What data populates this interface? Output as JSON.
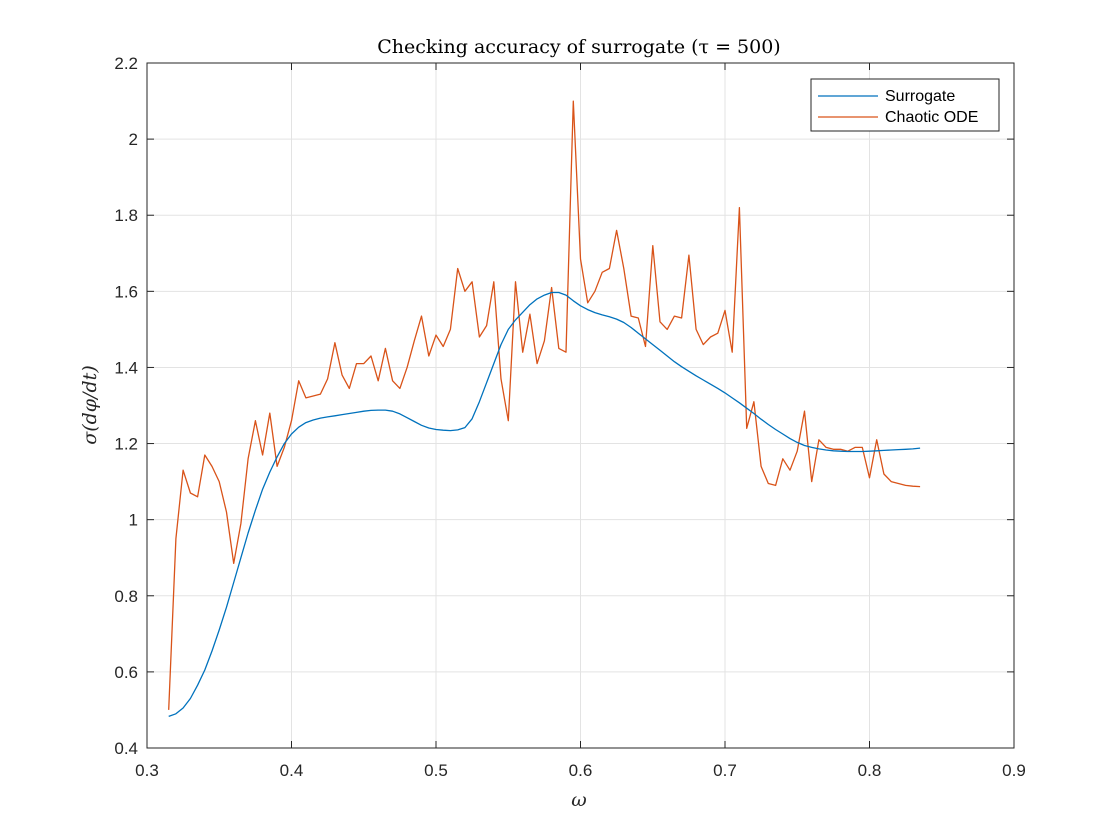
{
  "chart_data": {
    "type": "line",
    "title": "Checking accuracy of surrogate (τ = 500)",
    "xlabel": "ω",
    "ylabel": "σ(dφ/dt)",
    "xlim": [
      0.3,
      0.9
    ],
    "ylim": [
      0.4,
      2.2
    ],
    "xticks": [
      "0.3",
      "0.4",
      "0.5",
      "0.6",
      "0.7",
      "0.8",
      "0.9"
    ],
    "yticks": [
      "0.4",
      "0.6",
      "0.8",
      "1",
      "1.2",
      "1.4",
      "1.6",
      "1.8",
      "2",
      "2.2"
    ],
    "grid": true,
    "legend_position": "top-right",
    "series": [
      {
        "name": "Surrogate",
        "color": "#0072BD",
        "x": [
          0.315,
          0.32,
          0.325,
          0.33,
          0.335,
          0.34,
          0.345,
          0.35,
          0.355,
          0.36,
          0.365,
          0.37,
          0.375,
          0.38,
          0.385,
          0.39,
          0.395,
          0.4,
          0.405,
          0.41,
          0.415,
          0.42,
          0.425,
          0.43,
          0.435,
          0.44,
          0.445,
          0.45,
          0.455,
          0.46,
          0.465,
          0.47,
          0.475,
          0.48,
          0.485,
          0.49,
          0.495,
          0.5,
          0.505,
          0.51,
          0.515,
          0.52,
          0.525,
          0.53,
          0.535,
          0.54,
          0.545,
          0.55,
          0.555,
          0.56,
          0.565,
          0.57,
          0.575,
          0.58,
          0.585,
          0.59,
          0.595,
          0.6,
          0.605,
          0.61,
          0.615,
          0.62,
          0.625,
          0.63,
          0.635,
          0.64,
          0.645,
          0.65,
          0.655,
          0.66,
          0.665,
          0.67,
          0.675,
          0.68,
          0.685,
          0.69,
          0.695,
          0.7,
          0.705,
          0.71,
          0.715,
          0.72,
          0.725,
          0.73,
          0.735,
          0.74,
          0.745,
          0.75,
          0.755,
          0.76,
          0.765,
          0.77,
          0.775,
          0.78,
          0.785,
          0.79,
          0.795,
          0.8,
          0.805,
          0.81,
          0.815,
          0.82,
          0.825,
          0.83,
          0.835
        ],
        "y": [
          0.483,
          0.49,
          0.505,
          0.53,
          0.565,
          0.605,
          0.655,
          0.71,
          0.77,
          0.835,
          0.9,
          0.965,
          1.025,
          1.08,
          1.125,
          1.165,
          1.2,
          1.225,
          1.243,
          1.255,
          1.262,
          1.267,
          1.27,
          1.273,
          1.276,
          1.279,
          1.282,
          1.285,
          1.287,
          1.288,
          1.288,
          1.285,
          1.278,
          1.268,
          1.258,
          1.248,
          1.241,
          1.237,
          1.235,
          1.234,
          1.236,
          1.242,
          1.265,
          1.31,
          1.36,
          1.41,
          1.46,
          1.5,
          1.525,
          1.545,
          1.565,
          1.58,
          1.59,
          1.597,
          1.597,
          1.59,
          1.575,
          1.562,
          1.552,
          1.544,
          1.538,
          1.533,
          1.527,
          1.518,
          1.505,
          1.49,
          1.475,
          1.46,
          1.445,
          1.43,
          1.415,
          1.402,
          1.39,
          1.378,
          1.367,
          1.356,
          1.345,
          1.333,
          1.32,
          1.307,
          1.293,
          1.279,
          1.264,
          1.25,
          1.237,
          1.225,
          1.213,
          1.203,
          1.195,
          1.19,
          1.186,
          1.183,
          1.181,
          1.18,
          1.179,
          1.179,
          1.179,
          1.18,
          1.181,
          1.182,
          1.183,
          1.184,
          1.185,
          1.186,
          1.188
        ]
      },
      {
        "name": "Chaotic ODE",
        "color": "#D95319",
        "x": [
          0.315,
          0.32,
          0.325,
          0.33,
          0.335,
          0.34,
          0.345,
          0.35,
          0.355,
          0.36,
          0.365,
          0.37,
          0.375,
          0.38,
          0.385,
          0.39,
          0.395,
          0.4,
          0.405,
          0.41,
          0.415,
          0.42,
          0.425,
          0.43,
          0.435,
          0.44,
          0.445,
          0.45,
          0.455,
          0.46,
          0.465,
          0.47,
          0.475,
          0.48,
          0.485,
          0.49,
          0.495,
          0.5,
          0.505,
          0.51,
          0.515,
          0.52,
          0.525,
          0.53,
          0.535,
          0.54,
          0.545,
          0.55,
          0.555,
          0.56,
          0.565,
          0.57,
          0.575,
          0.58,
          0.585,
          0.59,
          0.595,
          0.6,
          0.605,
          0.61,
          0.615,
          0.62,
          0.625,
          0.63,
          0.635,
          0.64,
          0.645,
          0.65,
          0.655,
          0.66,
          0.665,
          0.67,
          0.675,
          0.68,
          0.685,
          0.69,
          0.695,
          0.7,
          0.705,
          0.71,
          0.715,
          0.72,
          0.725,
          0.73,
          0.735,
          0.74,
          0.745,
          0.75,
          0.755,
          0.76,
          0.765,
          0.77,
          0.775,
          0.78,
          0.785,
          0.79,
          0.795,
          0.8,
          0.805,
          0.81,
          0.815,
          0.82,
          0.825,
          0.83,
          0.835
        ],
        "y": [
          0.5,
          0.95,
          1.13,
          1.07,
          1.06,
          1.17,
          1.14,
          1.1,
          1.02,
          0.885,
          0.99,
          1.16,
          1.26,
          1.17,
          1.28,
          1.14,
          1.19,
          1.26,
          1.365,
          1.32,
          1.325,
          1.33,
          1.37,
          1.465,
          1.38,
          1.345,
          1.41,
          1.41,
          1.43,
          1.365,
          1.45,
          1.365,
          1.345,
          1.4,
          1.47,
          1.535,
          1.43,
          1.485,
          1.455,
          1.5,
          1.66,
          1.6,
          1.625,
          1.48,
          1.51,
          1.625,
          1.37,
          1.26,
          1.625,
          1.44,
          1.54,
          1.41,
          1.47,
          1.61,
          1.45,
          1.44,
          2.1,
          1.685,
          1.57,
          1.6,
          1.65,
          1.66,
          1.76,
          1.66,
          1.535,
          1.53,
          1.455,
          1.72,
          1.52,
          1.5,
          1.535,
          1.53,
          1.695,
          1.5,
          1.46,
          1.48,
          1.49,
          1.55,
          1.44,
          1.82,
          1.24,
          1.31,
          1.14,
          1.095,
          1.09,
          1.16,
          1.13,
          1.18,
          1.285,
          1.1,
          1.21,
          1.19,
          1.185,
          1.185,
          1.18,
          1.19,
          1.19,
          1.11,
          1.21,
          1.12,
          1.1,
          1.095,
          1.09,
          1.088,
          1.087
        ]
      }
    ]
  }
}
